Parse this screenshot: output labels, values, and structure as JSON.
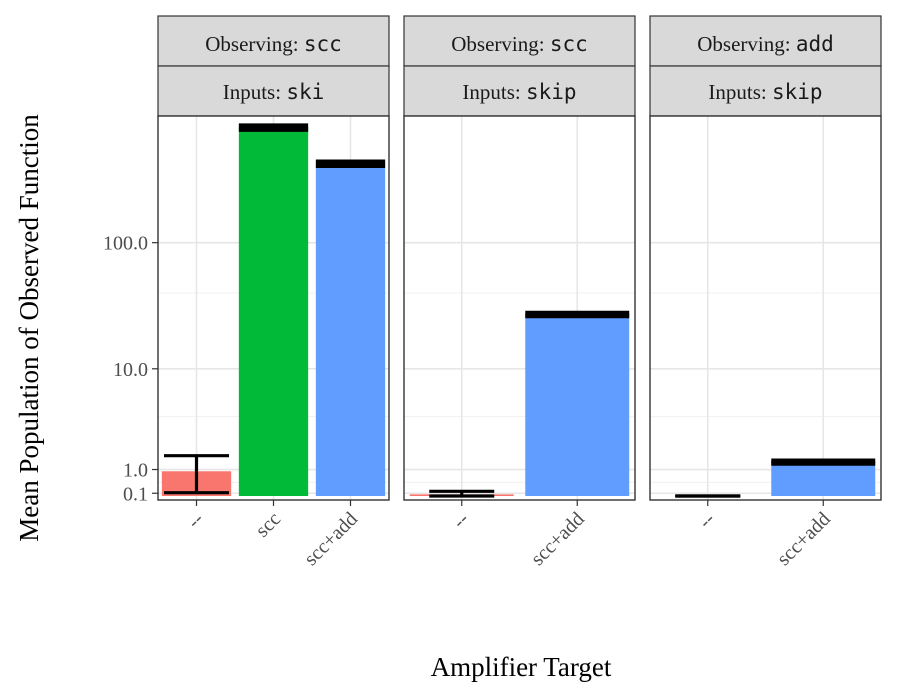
{
  "chart_data": {
    "type": "bar",
    "ylabel": "Mean  Population  of  Observed  Function",
    "xlabel": "Amplifier  Target",
    "y_scale": "pseudo-log",
    "y_ticks": [
      {
        "value": 0.1,
        "label": "0.1"
      },
      {
        "value": 1.0,
        "label": "1.0"
      },
      {
        "value": 10.0,
        "label": "10.0"
      },
      {
        "value": 100.0,
        "label": "100.0"
      }
    ],
    "colors": {
      "--": "#F8766D",
      "scc": "#00BA38",
      "scc+add": "#619CFF"
    },
    "panels": [
      {
        "strip_top_label": "Observing:",
        "strip_top_code": "scc",
        "strip_bottom_label": "Inputs:",
        "strip_bottom_code": "ski",
        "categories": [
          "--",
          "scc",
          "scc+add"
        ],
        "values": [
          0.93,
          810,
          420
        ],
        "errors": [
          [
            0.12,
            1.6
          ],
          [
            780,
            840
          ],
          [
            405,
            435
          ]
        ]
      },
      {
        "strip_top_label": "Observing:",
        "strip_top_code": "scc",
        "strip_bottom_label": "Inputs:",
        "strip_bottom_code": "skip",
        "categories": [
          "--",
          "scc+add"
        ],
        "values": [
          0.06,
          27
        ],
        "errors": [
          [
            0.0,
            0.17
          ],
          [
            26.3,
            27.8
          ]
        ]
      },
      {
        "strip_top_label": "Observing:",
        "strip_top_code": "add",
        "strip_bottom_label": "Inputs:",
        "strip_bottom_code": "skip",
        "categories": [
          "--",
          "scc+add"
        ],
        "values": [
          0.0,
          1.3
        ],
        "errors": [
          [
            0.0,
            0.0
          ],
          [
            1.25,
            1.37
          ]
        ]
      }
    ]
  }
}
